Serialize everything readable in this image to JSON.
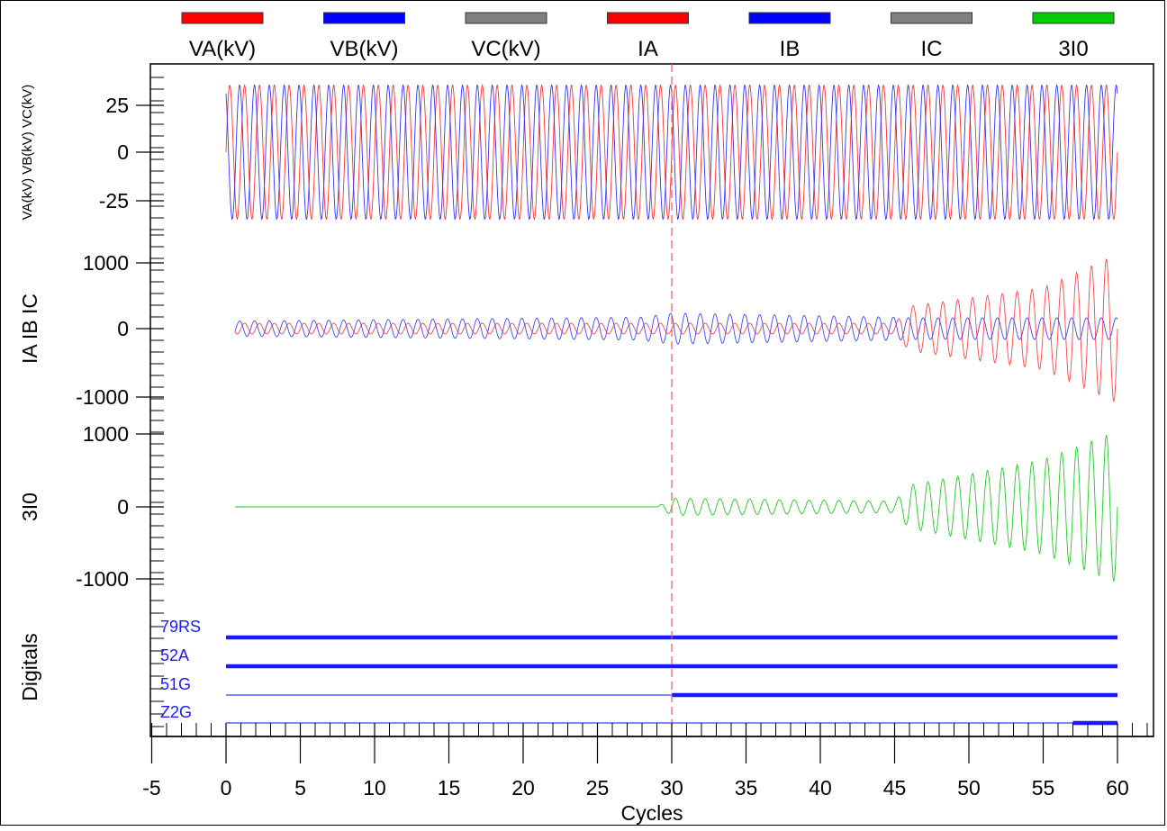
{
  "chart_data": {
    "type": "line",
    "xlabel": "Cycles",
    "xlim": [
      -5,
      60
    ],
    "x_ticks": [
      "-5",
      "0",
      "5",
      "10",
      "15",
      "20",
      "25",
      "30",
      "35",
      "40",
      "45",
      "50",
      "55",
      "60"
    ],
    "cursor_x": 30,
    "legend": {
      "placement": "top",
      "entries": [
        {
          "label": "VA(kV)",
          "color": "#ff0000"
        },
        {
          "label": "VB(kV)",
          "color": "#0000ff"
        },
        {
          "label": "VC(kV)",
          "color": "#808080"
        },
        {
          "label": "IA",
          "color": "#ff0000"
        },
        {
          "label": "IB",
          "color": "#0000ff"
        },
        {
          "label": "IC",
          "color": "#808080"
        },
        {
          "label": "3I0",
          "color": "#00cc00"
        }
      ]
    },
    "panels": [
      {
        "ylabel": "VA(kV) VB(kV) VC(kV)",
        "ylim": [
          -40,
          40
        ],
        "y_ticks": [
          "25",
          "0",
          "-25"
        ],
        "series": [
          {
            "name": "VA(kV)",
            "color": "#ff3333",
            "amplitude_peak_kV": 37,
            "x_start": 0,
            "x_end": 60
          },
          {
            "name": "VB(kV)",
            "color": "#3333ff",
            "amplitude_peak_kV": 37,
            "x_start": 0,
            "x_end": 60
          }
        ]
      },
      {
        "ylabel": "IA IB IC",
        "ylim": [
          -1100,
          1100
        ],
        "y_ticks": [
          "1000",
          "0",
          "-1000"
        ],
        "series": [
          {
            "name": "IA",
            "color": "#ff4444",
            "envelope": [
              [
                0,
                80
              ],
              [
                30,
                80
              ],
              [
                45,
                80
              ],
              [
                46,
                330
              ],
              [
                50,
                450
              ],
              [
                55,
                600
              ],
              [
                60,
                1100
              ]
            ]
          },
          {
            "name": "IB",
            "color": "#4444ff",
            "envelope": [
              [
                0,
                110
              ],
              [
                28,
                170
              ],
              [
                30,
                230
              ],
              [
                45,
                170
              ],
              [
                46,
                160
              ],
              [
                60,
                160
              ]
            ]
          }
        ]
      },
      {
        "ylabel": "3I0",
        "ylim": [
          -1200,
          1200
        ],
        "y_ticks": [
          "1000",
          "0",
          "-1000"
        ],
        "series": [
          {
            "name": "3I0",
            "color": "#22cc22",
            "envelope": [
              [
                0,
                0
              ],
              [
                29,
                0
              ],
              [
                30,
                120
              ],
              [
                45,
                80
              ],
              [
                46,
                300
              ],
              [
                50,
                450
              ],
              [
                55,
                650
              ],
              [
                60,
                1050
              ]
            ]
          }
        ]
      }
    ],
    "digitals": {
      "ylabel": "Digitals",
      "signals": [
        {
          "name": "79RS",
          "asserted": [
            [
              0,
              60
            ]
          ]
        },
        {
          "name": "52A",
          "asserted": [
            [
              0,
              60
            ]
          ]
        },
        {
          "name": "51G",
          "asserted": [
            [
              30,
              60
            ]
          ]
        },
        {
          "name": "Z2G",
          "asserted": [
            [
              57,
              60
            ]
          ]
        }
      ]
    }
  }
}
